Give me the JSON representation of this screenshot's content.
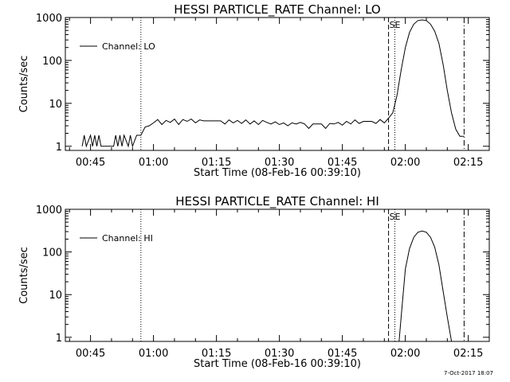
{
  "footer": {
    "timestamp": "7-Oct-2017 18:07"
  },
  "chart_data": [
    {
      "type": "line",
      "title": "HESSI PARTICLE_RATE Channel: LO",
      "xlabel": "Start Time (08-Feb-16 00:39:10)",
      "ylabel": "Counts/sec",
      "yscale": "log",
      "ylim": [
        0.8,
        1000
      ],
      "xlim": [
        "00:39",
        "02:20"
      ],
      "x_ticks": [
        "00:45",
        "01:00",
        "01:15",
        "01:30",
        "01:45",
        "02:00",
        "02:15"
      ],
      "y_ticks": [
        "1",
        "10",
        "100",
        "1000"
      ],
      "legend": {
        "label": "Channel: LO",
        "position": "top-left"
      },
      "markers": [
        {
          "time": "00:57",
          "style": "dotted"
        },
        {
          "time": "01:56",
          "style": "dashed",
          "label": "SE"
        },
        {
          "time": "01:57.5",
          "style": "dotted"
        },
        {
          "time": "02:14",
          "style": "dashdot"
        }
      ],
      "series": [
        {
          "points": [
            [
              "00:43",
              1
            ],
            [
              "00:43.5",
              1.8
            ],
            [
              "00:44",
              1
            ],
            [
              "00:45",
              1.8
            ],
            [
              "00:45.5",
              1
            ],
            [
              "00:46",
              1.8
            ],
            [
              "00:46.5",
              1
            ],
            [
              "00:47",
              1.8
            ],
            [
              "00:47.5",
              1
            ],
            [
              "00:50.5",
              1
            ],
            [
              "00:51",
              1.8
            ],
            [
              "00:51.5",
              1
            ],
            [
              "00:52",
              1.8
            ],
            [
              "00:52.5",
              1
            ],
            [
              "00:53",
              1.8
            ],
            [
              "00:54",
              1
            ],
            [
              "00:54.5",
              1.8
            ],
            [
              "00:55",
              1
            ],
            [
              "00:56",
              1.8
            ],
            [
              "00:57",
              1.8
            ],
            [
              "00:58",
              2.8
            ],
            [
              "00:59",
              3
            ],
            [
              "01:00",
              3.5
            ],
            [
              "01:01",
              4.2
            ],
            [
              "01:02",
              3.2
            ],
            [
              "01:03",
              4
            ],
            [
              "01:04",
              3.6
            ],
            [
              "01:05",
              4.3
            ],
            [
              "01:06",
              3.2
            ],
            [
              "01:07",
              4.2
            ],
            [
              "01:08",
              3.8
            ],
            [
              "01:09",
              4.3
            ],
            [
              "01:10",
              3.5
            ],
            [
              "01:11",
              4.1
            ],
            [
              "01:12",
              3.9
            ],
            [
              "01:14",
              3.9
            ],
            [
              "01:16",
              3.9
            ],
            [
              "01:17",
              3.3
            ],
            [
              "01:18",
              4.1
            ],
            [
              "01:19",
              3.5
            ],
            [
              "01:20",
              4
            ],
            [
              "01:21",
              3.4
            ],
            [
              "01:22",
              4.1
            ],
            [
              "01:23",
              3.3
            ],
            [
              "01:24",
              3.9
            ],
            [
              "01:25",
              3.2
            ],
            [
              "01:26",
              4
            ],
            [
              "01:27",
              3.6
            ],
            [
              "01:28",
              3.3
            ],
            [
              "01:29",
              3.7
            ],
            [
              "01:30",
              3.2
            ],
            [
              "01:31",
              3.5
            ],
            [
              "01:32",
              3
            ],
            [
              "01:33",
              3.5
            ],
            [
              "01:34",
              3.3
            ],
            [
              "01:35",
              3.6
            ],
            [
              "01:36",
              3.3
            ],
            [
              "01:37",
              2.6
            ],
            [
              "01:38",
              3.3
            ],
            [
              "01:39",
              3.3
            ],
            [
              "01:40",
              3.3
            ],
            [
              "01:41",
              2.6
            ],
            [
              "01:42",
              3.4
            ],
            [
              "01:43",
              3.3
            ],
            [
              "01:44",
              3.6
            ],
            [
              "01:45",
              3.1
            ],
            [
              "01:46",
              3.8
            ],
            [
              "01:47",
              3.3
            ],
            [
              "01:48",
              4.1
            ],
            [
              "01:49",
              3.4
            ],
            [
              "01:50",
              3.8
            ],
            [
              "01:52",
              3.8
            ],
            [
              "01:53",
              3.4
            ],
            [
              "01:54",
              4.2
            ],
            [
              "01:55",
              3.5
            ],
            [
              "01:56",
              4.5
            ],
            [
              "01:57",
              6
            ],
            [
              "01:58",
              15
            ],
            [
              "01:59",
              60
            ],
            [
              "02:00",
              200
            ],
            [
              "02:01",
              450
            ],
            [
              "02:02",
              700
            ],
            [
              "02:03",
              850
            ],
            [
              "02:04",
              880
            ],
            [
              "02:05",
              850
            ],
            [
              "02:06",
              700
            ],
            [
              "02:07",
              480
            ],
            [
              "02:08",
              250
            ],
            [
              "02:09",
              80
            ],
            [
              "02:10",
              20
            ],
            [
              "02:11",
              6
            ],
            [
              "02:12",
              2.5
            ],
            [
              "02:13",
              1.7
            ],
            [
              "02:14",
              1.7
            ]
          ]
        }
      ]
    },
    {
      "type": "line",
      "title": "HESSI PARTICLE_RATE Channel: HI",
      "xlabel": "Start Time (08-Feb-16 00:39:10)",
      "ylabel": "Counts/sec",
      "yscale": "log",
      "ylim": [
        0.8,
        1000
      ],
      "xlim": [
        "00:39",
        "02:20"
      ],
      "x_ticks": [
        "00:45",
        "01:00",
        "01:15",
        "01:30",
        "01:45",
        "02:00",
        "02:15"
      ],
      "y_ticks": [
        "1",
        "10",
        "100",
        "1000"
      ],
      "legend": {
        "label": "Channel: HI",
        "position": "top-left"
      },
      "markers": [
        {
          "time": "00:57",
          "style": "dotted"
        },
        {
          "time": "01:56",
          "style": "dashed",
          "label": "SE"
        },
        {
          "time": "01:57.5",
          "style": "dotted"
        },
        {
          "time": "02:14",
          "style": "dashdot"
        }
      ],
      "series": [
        {
          "points": [
            [
              "01:58.5",
              0.8
            ],
            [
              "01:59",
              3
            ],
            [
              "02:00",
              40
            ],
            [
              "02:01",
              120
            ],
            [
              "02:02",
              220
            ],
            [
              "02:03",
              290
            ],
            [
              "02:04",
              310
            ],
            [
              "02:05",
              290
            ],
            [
              "02:06",
              220
            ],
            [
              "02:07",
              130
            ],
            [
              "02:08",
              50
            ],
            [
              "02:09",
              12
            ],
            [
              "02:10",
              3
            ],
            [
              "02:11",
              0.8
            ]
          ]
        }
      ]
    }
  ]
}
